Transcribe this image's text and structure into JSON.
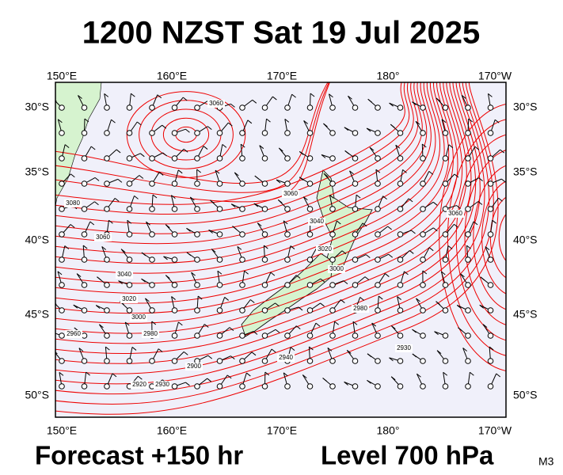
{
  "header": {
    "title": "1200 NZST Sat 19 Jul 2025"
  },
  "map": {
    "lon_labels": [
      "150°E",
      "160°E",
      "170°E",
      "180°",
      "170°W"
    ],
    "lat_labels": [
      "30°S",
      "35°S",
      "40°S",
      "45°S",
      "50°S"
    ],
    "contour_labels": [
      "3060",
      "3080",
      "3060",
      "3040",
      "3020",
      "3000",
      "2980",
      "2960",
      "2930",
      "2920",
      "2900",
      "2940",
      "3060",
      "3040",
      "3020",
      "3000",
      "2980",
      "2930",
      "3060"
    ]
  },
  "footer": {
    "forecast": "Forecast +150 hr",
    "level": "Level 700 hPa",
    "code": "M3"
  }
}
